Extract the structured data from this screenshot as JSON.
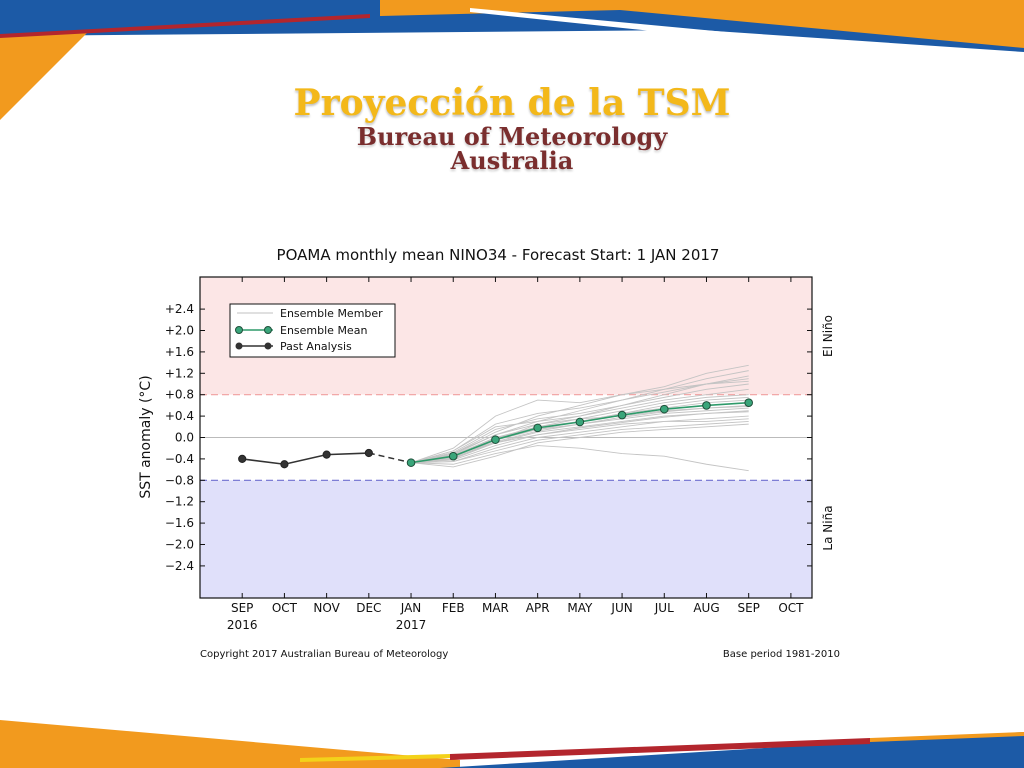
{
  "slide": {
    "title": "Proyección de la TSM",
    "subtitle_line1": "Bureau of Meteorology",
    "subtitle_line2": "Australia",
    "accent_orange": "#f29a1e",
    "accent_blue": "#1c5aa6",
    "accent_red": "#b3262d"
  },
  "chart_data": {
    "type": "line",
    "title": "POAMA monthly mean NINO34 - Forecast Start: 1 JAN 2017",
    "xlabel": "",
    "ylabel": "SST anomaly (°C)",
    "categories": [
      "SEP",
      "OCT",
      "NOV",
      "DEC",
      "JAN",
      "FEB",
      "MAR",
      "APR",
      "MAY",
      "JUN",
      "JUL",
      "AUG",
      "SEP",
      "OCT"
    ],
    "year_labels": [
      {
        "index": 0,
        "label": "2016"
      },
      {
        "index": 4,
        "label": "2017"
      }
    ],
    "ylim": [
      -3.0,
      3.0
    ],
    "yticks": [
      2.4,
      2.0,
      1.6,
      1.2,
      0.8,
      0.4,
      0.0,
      -0.4,
      -0.8,
      -1.2,
      -1.6,
      -2.0,
      -2.4
    ],
    "ytick_labels": [
      "+2.4",
      "+2.0",
      "+1.6",
      "+1.2",
      "+0.8",
      "+0.4",
      "0.0",
      "−0.4",
      "−0.8",
      "−1.2",
      "−1.6",
      "−2.0",
      "−2.4"
    ],
    "thresholds": {
      "el_nino": 0.8,
      "la_nina": -0.8
    },
    "region_labels": {
      "el_nino": "El Niño",
      "la_nina": "La Niña"
    },
    "legend": {
      "position": "upper-left",
      "entries": [
        "Ensemble Member",
        "Ensemble Mean",
        "Past Analysis"
      ]
    },
    "series": [
      {
        "name": "Past Analysis",
        "x": [
          0,
          1,
          2,
          3
        ],
        "values": [
          -0.4,
          -0.5,
          -0.32,
          -0.29
        ],
        "color": "#333333"
      },
      {
        "name": "Ensemble Mean",
        "x": [
          4,
          5,
          6,
          7,
          8,
          9,
          10,
          11,
          12
        ],
        "values": [
          -0.47,
          -0.35,
          -0.04,
          0.18,
          0.29,
          0.42,
          0.53,
          0.6,
          0.65
        ],
        "color": "#2e9a6a"
      }
    ],
    "ensemble_members": [
      [
        -0.47,
        -0.4,
        -0.05,
        0.25,
        0.4,
        0.6,
        0.8,
        1.0,
        1.15
      ],
      [
        -0.47,
        -0.3,
        0.1,
        0.4,
        0.6,
        0.8,
        0.95,
        1.2,
        1.35
      ],
      [
        -0.47,
        -0.45,
        -0.2,
        0.0,
        0.1,
        0.2,
        0.3,
        0.35,
        0.4
      ],
      [
        -0.47,
        -0.5,
        -0.3,
        -0.15,
        -0.2,
        -0.3,
        -0.35,
        -0.5,
        -0.62
      ],
      [
        -0.47,
        -0.25,
        0.2,
        0.3,
        0.5,
        0.7,
        0.9,
        1.1,
        1.25
      ],
      [
        -0.47,
        -0.35,
        0.0,
        0.15,
        0.25,
        0.35,
        0.45,
        0.5,
        0.55
      ],
      [
        -0.47,
        -0.38,
        -0.1,
        0.1,
        0.2,
        0.3,
        0.4,
        0.45,
        0.5
      ],
      [
        -0.47,
        -0.2,
        0.4,
        0.7,
        0.65,
        0.8,
        0.9,
        1.0,
        1.05
      ],
      [
        -0.47,
        -0.42,
        -0.15,
        0.05,
        0.15,
        0.25,
        0.3,
        0.3,
        0.35
      ],
      [
        -0.47,
        -0.3,
        0.05,
        0.3,
        0.4,
        0.55,
        0.7,
        0.8,
        0.9
      ],
      [
        -0.47,
        -0.55,
        -0.35,
        -0.1,
        0.0,
        0.1,
        0.15,
        0.2,
        0.25
      ],
      [
        -0.47,
        -0.33,
        0.0,
        0.2,
        0.35,
        0.5,
        0.65,
        0.75,
        0.8
      ],
      [
        -0.47,
        -0.36,
        -0.05,
        0.15,
        0.3,
        0.45,
        0.6,
        0.7,
        0.75
      ],
      [
        -0.47,
        -0.28,
        0.15,
        0.35,
        0.45,
        0.6,
        0.75,
        0.9,
        1.0
      ],
      [
        -0.47,
        -0.4,
        -0.1,
        0.05,
        0.18,
        0.28,
        0.38,
        0.45,
        0.48
      ],
      [
        -0.47,
        -0.32,
        0.05,
        0.25,
        0.35,
        0.4,
        0.5,
        0.55,
        0.6
      ],
      [
        -0.47,
        -0.45,
        -0.25,
        -0.05,
        0.05,
        0.15,
        0.2,
        0.25,
        0.3
      ],
      [
        -0.47,
        -0.25,
        0.25,
        0.45,
        0.55,
        0.7,
        0.85,
        1.0,
        1.1
      ],
      [
        -0.47,
        -0.35,
        -0.02,
        0.2,
        0.3,
        0.45,
        0.55,
        0.65,
        0.7
      ],
      [
        -0.47,
        -0.38,
        -0.08,
        0.12,
        0.25,
        0.38,
        0.48,
        0.55,
        0.58
      ]
    ],
    "footer_left": "Copyright 2017 Australian Bureau of Meteorology",
    "footer_right": "Base period 1981-2010"
  }
}
